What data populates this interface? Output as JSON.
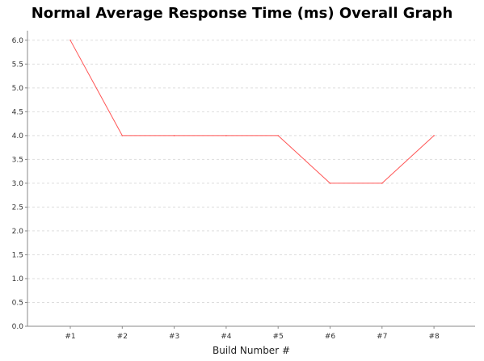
{
  "chart_data": {
    "type": "line",
    "title": "Normal Average Response Time (ms) Overall Graph",
    "xlabel": "Build Number #",
    "ylabel": "",
    "categories": [
      "#1",
      "#2",
      "#3",
      "#4",
      "#5",
      "#6",
      "#7",
      "#8"
    ],
    "series": [
      {
        "values": [
          6.0,
          4.0,
          4.0,
          4.0,
          4.0,
          3.0,
          3.0,
          4.0
        ],
        "color": "#ff5555"
      }
    ],
    "ylim": [
      0,
      6.2
    ],
    "yticks": [
      "0.0",
      "0.5",
      "1.0",
      "1.5",
      "2.0",
      "2.5",
      "3.0",
      "3.5",
      "4.0",
      "4.5",
      "5.0",
      "5.5",
      "6.0"
    ],
    "grid": true,
    "legend": "none",
    "colors": {
      "plot_bg": "#ffffff",
      "grid": "#dddddd",
      "axis": "#888888"
    }
  }
}
